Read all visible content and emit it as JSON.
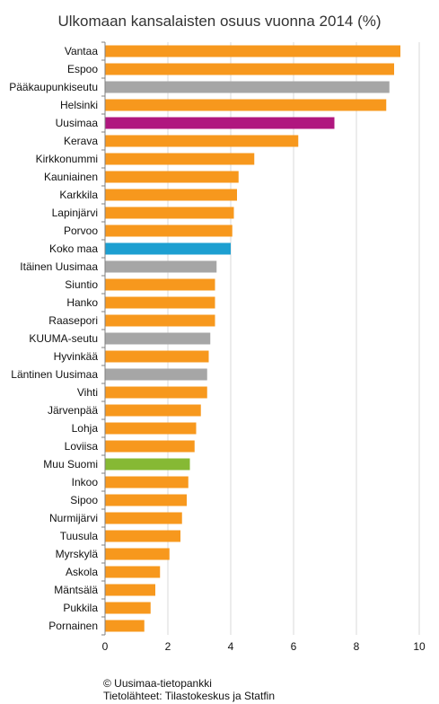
{
  "colors": {
    "city": "#F7981D",
    "region": "#A6A6A6",
    "uusimaa": "#B0177F",
    "koko_maa": "#1D9FD1",
    "muu_suomi": "#86B934",
    "grid": "#D9D9D9",
    "axis": "#808080"
  },
  "chart_data": {
    "type": "bar",
    "orientation": "horizontal",
    "title": "Ulkomaan kansalaisten osuus vuonna 2014 (%)",
    "xlabel": "",
    "ylabel": "",
    "xlim": [
      0,
      10
    ],
    "xticks": [
      "0",
      "2",
      "4",
      "6",
      "8",
      "10"
    ],
    "grid": "vertical",
    "legend": "none",
    "categories": [
      "Vantaa",
      "Espoo",
      "Pääkaupunkiseutu",
      "Helsinki",
      "Uusimaa",
      "Kerava",
      "Kirkkonummi",
      "Kauniainen",
      "Karkkila",
      "Lapinjärvi",
      "Porvoo",
      "Koko maa",
      "Itäinen Uusimaa",
      "Siuntio",
      "Hanko",
      "Raasepori",
      "KUUMA-seutu",
      "Hyvinkää",
      "Läntinen Uusimaa",
      "Vihti",
      "Järvenpää",
      "Lohja",
      "Loviisa",
      "Muu Suomi",
      "Inkoo",
      "Sipoo",
      "Nurmijärvi",
      "Tuusula",
      "Myrskylä",
      "Askola",
      "Mäntsälä",
      "Pukkila",
      "Pornainen"
    ],
    "values": [
      9.4,
      9.2,
      9.05,
      8.95,
      7.3,
      6.15,
      4.75,
      4.25,
      4.2,
      4.1,
      4.05,
      4.0,
      3.55,
      3.5,
      3.5,
      3.5,
      3.35,
      3.3,
      3.25,
      3.25,
      3.05,
      2.9,
      2.85,
      2.7,
      2.65,
      2.6,
      2.45,
      2.4,
      2.05,
      1.75,
      1.6,
      1.45,
      1.25
    ],
    "color_groups": [
      "city",
      "city",
      "region",
      "city",
      "uusimaa",
      "city",
      "city",
      "city",
      "city",
      "city",
      "city",
      "koko_maa",
      "region",
      "city",
      "city",
      "city",
      "region",
      "city",
      "region",
      "city",
      "city",
      "city",
      "city",
      "muu_suomi",
      "city",
      "city",
      "city",
      "city",
      "city",
      "city",
      "city",
      "city",
      "city"
    ]
  },
  "footer": {
    "copyright": "© Uusimaa-tietopankki",
    "sources": "Tietolähteet:  Tilastokeskus ja Statfin"
  }
}
